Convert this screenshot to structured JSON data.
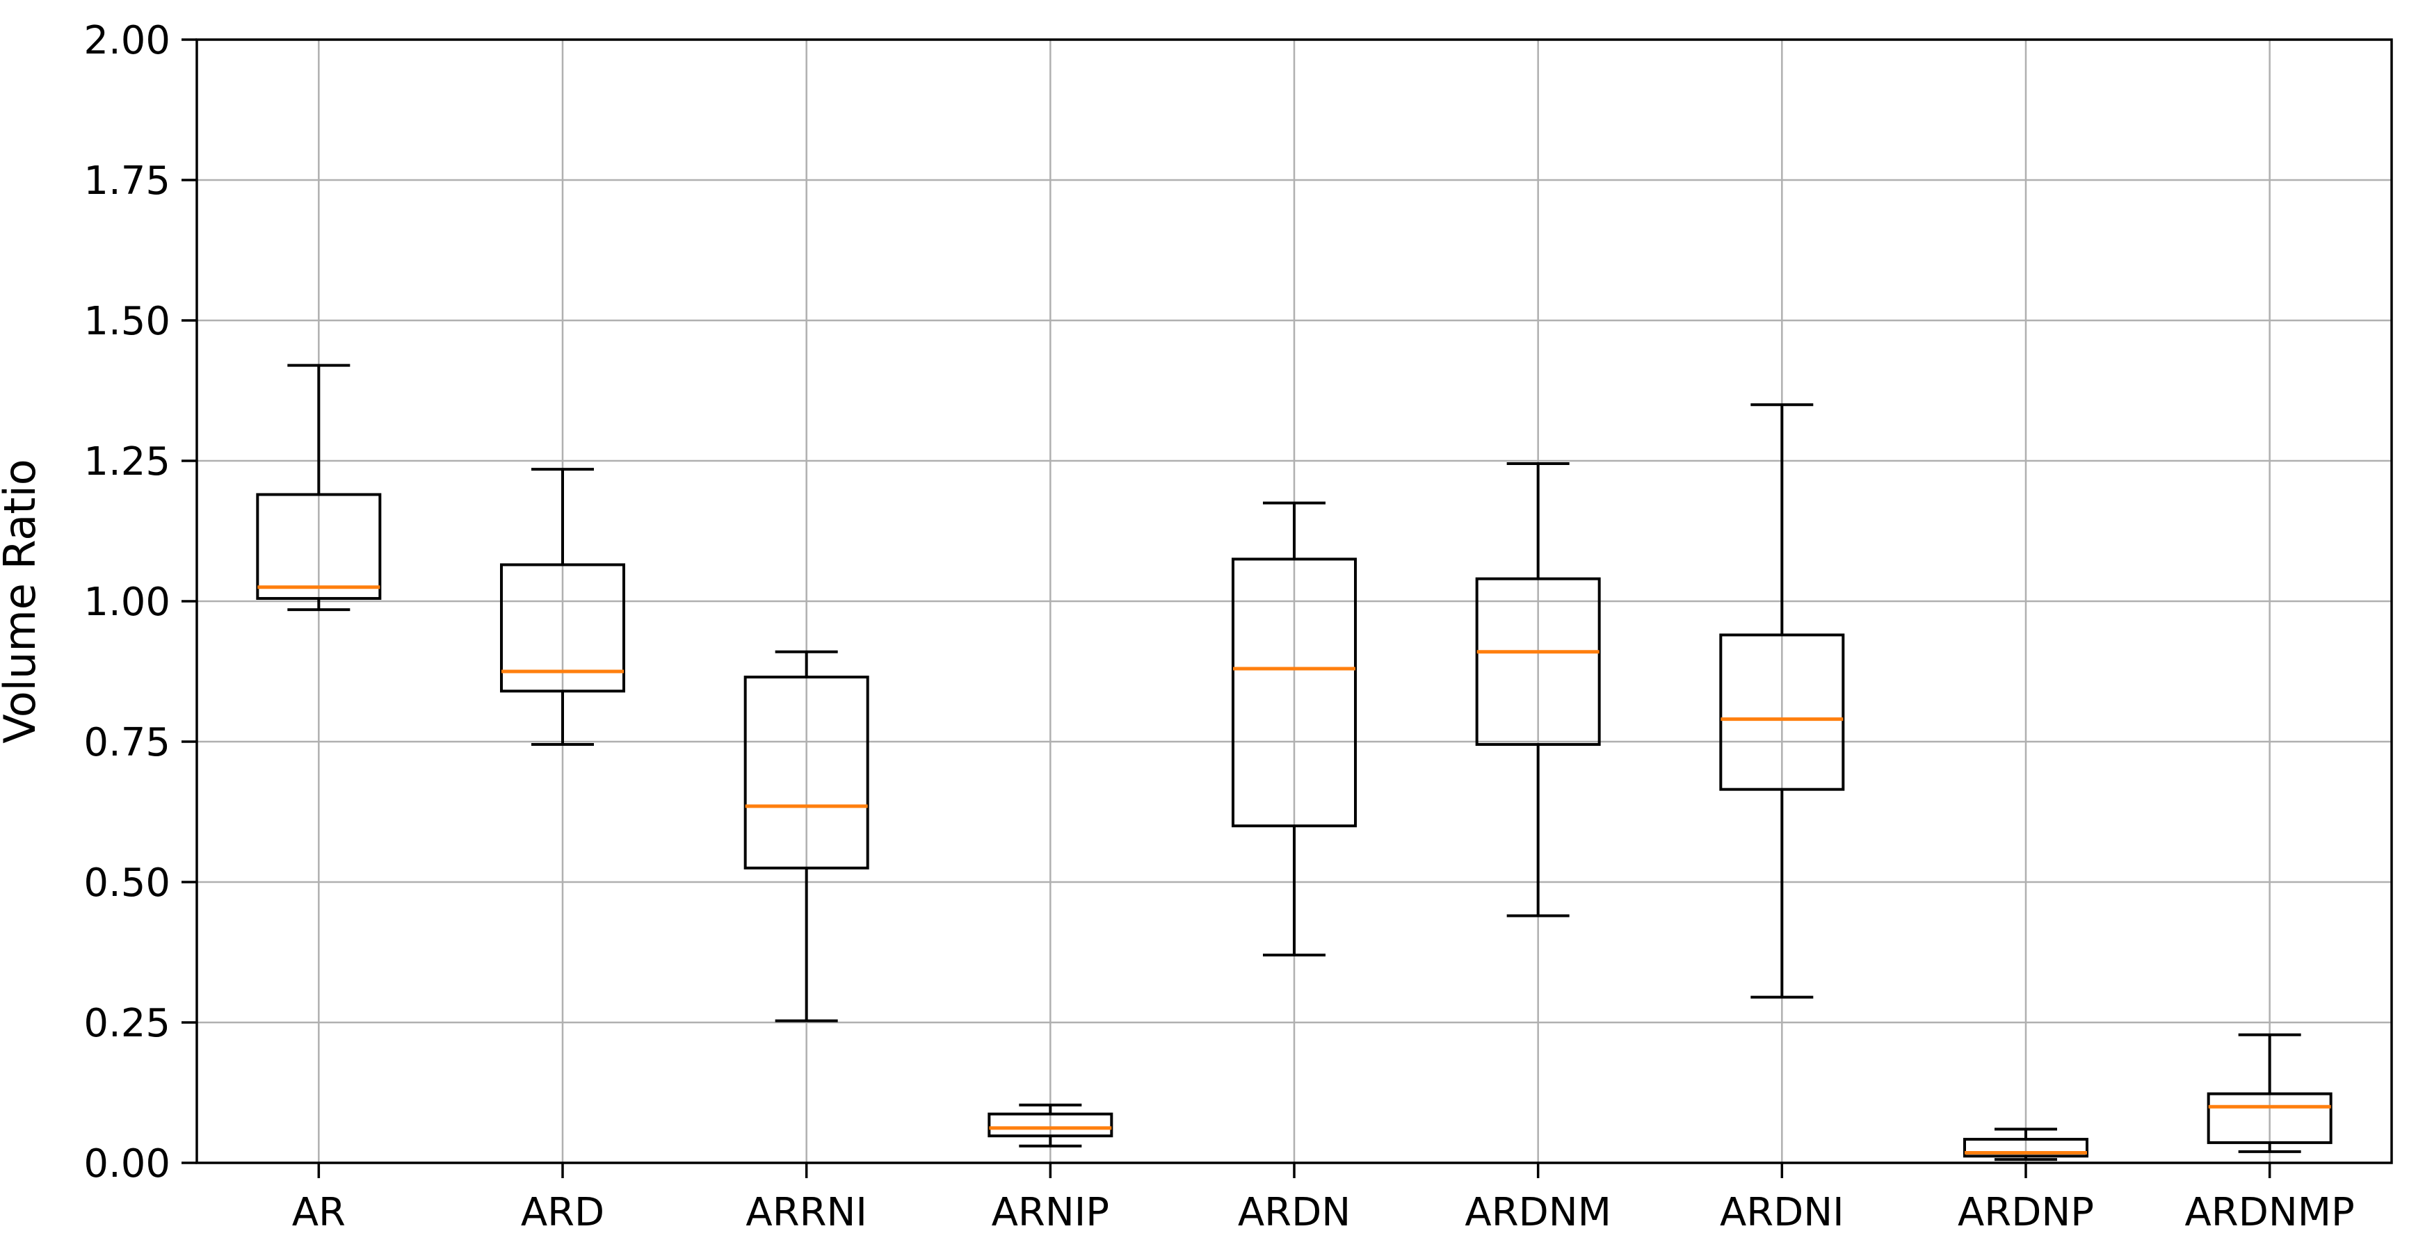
{
  "chart_data": {
    "type": "boxplot",
    "title": "",
    "xlabel": "",
    "ylabel": "Volume Ratio",
    "ylim": [
      0.0,
      2.0
    ],
    "ytick_step": 0.25,
    "ytick_labels": [
      "0.00",
      "0.25",
      "0.50",
      "0.75",
      "1.00",
      "1.25",
      "1.50",
      "1.75",
      "2.00"
    ],
    "grid": true,
    "legend": "none",
    "categories": [
      "AR",
      "ARD",
      "ARRNI",
      "ARNIP",
      "ARDN",
      "ARDNM",
      "ARDNI",
      "ARDNP",
      "ARDNMP"
    ],
    "series": [
      {
        "label": "AR",
        "whisker_low": 0.985,
        "q1": 1.005,
        "median": 1.025,
        "q3": 1.19,
        "whisker_high": 1.42
      },
      {
        "label": "ARD",
        "whisker_low": 0.745,
        "q1": 0.84,
        "median": 0.875,
        "q3": 1.065,
        "whisker_high": 1.235
      },
      {
        "label": "ARRNI",
        "whisker_low": 0.253,
        "q1": 0.525,
        "median": 0.635,
        "q3": 0.865,
        "whisker_high": 0.91
      },
      {
        "label": "ARNIP",
        "whisker_low": 0.03,
        "q1": 0.048,
        "median": 0.062,
        "q3": 0.087,
        "whisker_high": 0.103
      },
      {
        "label": "ARDN",
        "whisker_low": 0.37,
        "q1": 0.6,
        "median": 0.88,
        "q3": 1.075,
        "whisker_high": 1.175
      },
      {
        "label": "ARDNM",
        "whisker_low": 0.44,
        "q1": 0.745,
        "median": 0.91,
        "q3": 1.04,
        "whisker_high": 1.245
      },
      {
        "label": "ARDNI",
        "whisker_low": 0.295,
        "q1": 0.665,
        "median": 0.79,
        "q3": 0.94,
        "whisker_high": 1.35
      },
      {
        "label": "ARDNP",
        "whisker_low": 0.006,
        "q1": 0.012,
        "median": 0.018,
        "q3": 0.042,
        "whisker_high": 0.06
      },
      {
        "label": "ARDNMP",
        "whisker_low": 0.02,
        "q1": 0.036,
        "median": 0.1,
        "q3": 0.123,
        "whisker_high": 0.228
      }
    ],
    "colors": {
      "median": "#ff7f0e",
      "box_line": "#000000",
      "grid": "#b0b0b0",
      "spine": "#000000",
      "background": "#ffffff"
    }
  }
}
